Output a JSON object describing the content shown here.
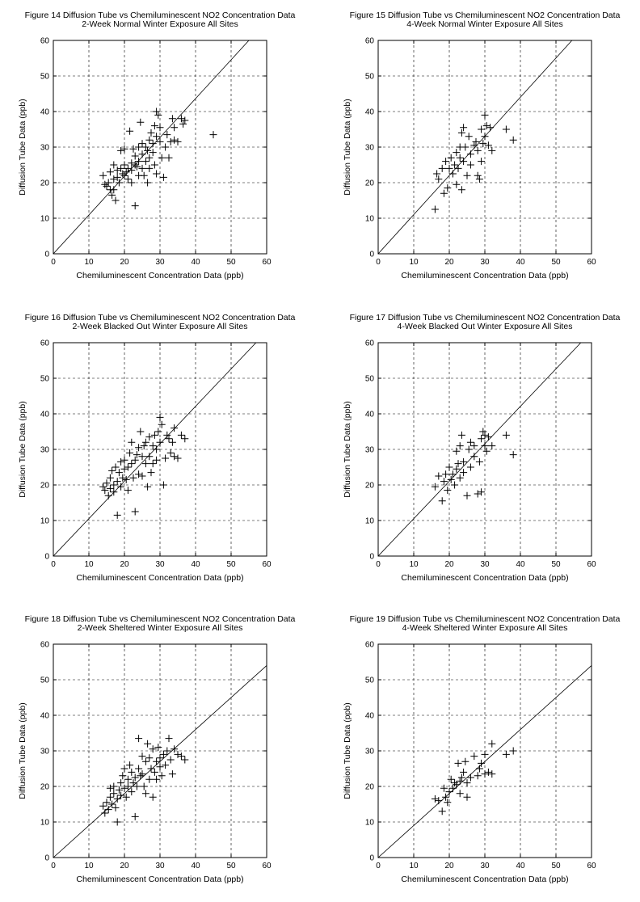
{
  "chart_data": [
    {
      "type": "scatter",
      "title": "Figure 14  Diffusion Tube vs Chemiluminescent NO2 Concentration Data",
      "subtitle": "2-Week Normal Winter Exposure All Sites",
      "xlabel": "Chemiluminescent Concentration Data (ppb)",
      "ylabel": "Diffusion Tube Data (ppb)",
      "xlim": [
        0,
        60
      ],
      "ylim": [
        0,
        60
      ],
      "xticks": [
        "0",
        "10",
        "20",
        "30",
        "40",
        "50",
        "60"
      ],
      "yticks": [
        "0",
        "10",
        "20",
        "30",
        "40",
        "50",
        "60"
      ],
      "grid": true,
      "line": {
        "x": [
          0,
          55
        ],
        "y": [
          0,
          60
        ]
      },
      "points": [
        [
          14,
          22
        ],
        [
          14.5,
          19.5
        ],
        [
          15,
          19
        ],
        [
          15.5,
          20
        ],
        [
          16,
          18
        ],
        [
          16,
          23
        ],
        [
          16.5,
          16.5
        ],
        [
          17,
          25
        ],
        [
          17,
          21
        ],
        [
          17,
          18
        ],
        [
          17.5,
          15
        ],
        [
          18,
          23.5
        ],
        [
          18,
          21.5
        ],
        [
          18.5,
          20
        ],
        [
          19,
          29
        ],
        [
          19,
          24
        ],
        [
          19.5,
          22.5
        ],
        [
          20,
          22
        ],
        [
          20,
          25
        ],
        [
          20,
          29.5
        ],
        [
          20.5,
          23
        ],
        [
          21,
          24
        ],
        [
          21,
          21
        ],
        [
          21.5,
          34.5
        ],
        [
          22,
          25.5
        ],
        [
          22,
          23.5
        ],
        [
          22,
          20
        ],
        [
          22.5,
          29.5
        ],
        [
          23,
          13.5
        ],
        [
          23,
          25
        ],
        [
          23,
          27.5
        ],
        [
          23.5,
          24.5
        ],
        [
          24,
          22
        ],
        [
          24,
          26
        ],
        [
          24,
          30
        ],
        [
          24.5,
          37
        ],
        [
          25,
          28
        ],
        [
          25,
          24
        ],
        [
          25,
          31
        ],
        [
          25.5,
          22
        ],
        [
          26,
          30
        ],
        [
          26,
          26
        ],
        [
          26.5,
          29
        ],
        [
          26.5,
          20
        ],
        [
          27,
          32
        ],
        [
          27,
          27
        ],
        [
          27,
          24
        ],
        [
          27.5,
          34
        ],
        [
          28,
          28.5
        ],
        [
          28,
          31
        ],
        [
          28.5,
          25
        ],
        [
          28.5,
          36
        ],
        [
          29,
          33
        ],
        [
          29,
          40
        ],
        [
          29,
          22.5
        ],
        [
          29.5,
          39
        ],
        [
          30,
          31.5
        ],
        [
          30,
          35.5
        ],
        [
          30.5,
          27
        ],
        [
          31,
          21.5
        ],
        [
          31.5,
          30
        ],
        [
          32,
          33.5
        ],
        [
          32.5,
          27
        ],
        [
          33,
          31.5
        ],
        [
          33.5,
          38
        ],
        [
          34,
          35.5
        ],
        [
          34,
          32
        ],
        [
          35,
          31.5
        ],
        [
          36,
          38
        ],
        [
          36.5,
          36.5
        ],
        [
          37,
          37.5
        ],
        [
          45,
          33.5
        ]
      ]
    },
    {
      "type": "scatter",
      "title": "Figure 15  Diffusion Tube vs Chemiluminescent NO2 Concentration Data",
      "subtitle": "4-Week Normal Winter Exposure All Sites",
      "xlabel": "Chemiluminescent Concentration Data (ppb)",
      "ylabel": "Diffusion Tube Data (ppb)",
      "xlim": [
        0,
        60
      ],
      "ylim": [
        0,
        60
      ],
      "xticks": [
        "0",
        "10",
        "20",
        "30",
        "40",
        "50",
        "60"
      ],
      "yticks": [
        "0",
        "10",
        "20",
        "30",
        "40",
        "50",
        "60"
      ],
      "grid": true,
      "line": {
        "x": [
          0,
          54.5
        ],
        "y": [
          0,
          60
        ]
      },
      "points": [
        [
          16,
          12.5
        ],
        [
          16.5,
          22.5
        ],
        [
          17,
          21
        ],
        [
          18,
          24
        ],
        [
          18.5,
          17
        ],
        [
          19,
          26
        ],
        [
          19.5,
          18.5
        ],
        [
          20,
          24
        ],
        [
          20.5,
          27
        ],
        [
          21,
          22.5
        ],
        [
          21.5,
          25
        ],
        [
          22,
          28.5
        ],
        [
          22,
          19.5
        ],
        [
          22.5,
          24
        ],
        [
          23,
          27
        ],
        [
          23,
          30
        ],
        [
          23.5,
          18
        ],
        [
          23.5,
          34
        ],
        [
          24,
          35.5
        ],
        [
          24,
          26
        ],
        [
          24.5,
          30
        ],
        [
          25,
          22
        ],
        [
          25.5,
          33
        ],
        [
          26,
          28
        ],
        [
          26,
          25
        ],
        [
          27,
          30.5
        ],
        [
          27.5,
          31.5
        ],
        [
          28,
          29
        ],
        [
          28,
          22
        ],
        [
          28.5,
          21
        ],
        [
          29,
          35
        ],
        [
          29,
          26
        ],
        [
          29.5,
          31
        ],
        [
          30,
          39
        ],
        [
          30,
          33
        ],
        [
          30.5,
          36
        ],
        [
          31,
          30.5
        ],
        [
          31.5,
          35.5
        ],
        [
          32,
          29
        ],
        [
          36,
          35
        ],
        [
          38,
          32
        ]
      ]
    },
    {
      "type": "scatter",
      "title": "Figure 16  Diffusion Tube vs Chemiluminescent NO2 Concentration Data",
      "subtitle": "2-Week Blacked Out Winter Exposure All Sites",
      "xlabel": "Chemiluminescent Concentration Data (ppb)",
      "ylabel": "Diffusion Tube Data (ppb)",
      "xlim": [
        0,
        60
      ],
      "ylim": [
        0,
        60
      ],
      "xticks": [
        "0",
        "10",
        "20",
        "30",
        "40",
        "50",
        "60"
      ],
      "yticks": [
        "0",
        "10",
        "20",
        "30",
        "40",
        "50",
        "60"
      ],
      "grid": true,
      "line": {
        "x": [
          0,
          57
        ],
        "y": [
          0,
          60
        ]
      },
      "points": [
        [
          14,
          19.5
        ],
        [
          14.5,
          18.5
        ],
        [
          15,
          20.5
        ],
        [
          15.5,
          17
        ],
        [
          16,
          22
        ],
        [
          16,
          19
        ],
        [
          16.5,
          24
        ],
        [
          17,
          20
        ],
        [
          17,
          18
        ],
        [
          17.5,
          25
        ],
        [
          18,
          11.5
        ],
        [
          18,
          21
        ],
        [
          18.5,
          23.5
        ],
        [
          19,
          26.5
        ],
        [
          19,
          19.5
        ],
        [
          19.5,
          22
        ],
        [
          20,
          24.5
        ],
        [
          20,
          27
        ],
        [
          20.5,
          21.5
        ],
        [
          21,
          25
        ],
        [
          21,
          18.5
        ],
        [
          21.5,
          29
        ],
        [
          22,
          26
        ],
        [
          22,
          32
        ],
        [
          22.5,
          22
        ],
        [
          23,
          12.5
        ],
        [
          23,
          27
        ],
        [
          23.5,
          28.5
        ],
        [
          24,
          23
        ],
        [
          24,
          30.5
        ],
        [
          24.5,
          35
        ],
        [
          25,
          28
        ],
        [
          25,
          22.5
        ],
        [
          25.5,
          31
        ],
        [
          26,
          26
        ],
        [
          26,
          32
        ],
        [
          26.5,
          19.5
        ],
        [
          27,
          28
        ],
        [
          27,
          33.5
        ],
        [
          27.5,
          23.5
        ],
        [
          28,
          31
        ],
        [
          28,
          26
        ],
        [
          28.5,
          34
        ],
        [
          29,
          30
        ],
        [
          29,
          27
        ],
        [
          29.5,
          35
        ],
        [
          30,
          39
        ],
        [
          30,
          32
        ],
        [
          30.5,
          37
        ],
        [
          31,
          20
        ],
        [
          31.5,
          27.5
        ],
        [
          32,
          34
        ],
        [
          32.5,
          33
        ],
        [
          33,
          29
        ],
        [
          33.5,
          32
        ],
        [
          34,
          36
        ],
        [
          34,
          28
        ],
        [
          35,
          27.5
        ],
        [
          36,
          34
        ],
        [
          37,
          33
        ]
      ]
    },
    {
      "type": "scatter",
      "title": "Figure 17  Diffusion Tube vs Chemiluminescent NO2 Concentration Data",
      "subtitle": "4-Week Blacked Out Winter Exposure All Sites",
      "xlabel": "Chemiluminescent Concentration Data (ppb)",
      "ylabel": "Diffusion Tube Data (ppb)",
      "xlim": [
        0,
        60
      ],
      "ylim": [
        0,
        60
      ],
      "xticks": [
        "0",
        "10",
        "20",
        "30",
        "40",
        "50",
        "60"
      ],
      "yticks": [
        "0",
        "10",
        "20",
        "30",
        "40",
        "50",
        "60"
      ],
      "grid": true,
      "line": {
        "x": [
          0,
          57
        ],
        "y": [
          0,
          60
        ]
      },
      "points": [
        [
          16,
          19.5
        ],
        [
          17,
          22.5
        ],
        [
          18,
          15.5
        ],
        [
          18.5,
          21
        ],
        [
          19,
          23
        ],
        [
          19.5,
          18.5
        ],
        [
          20,
          25
        ],
        [
          20.5,
          21.5
        ],
        [
          21,
          23
        ],
        [
          21.5,
          20
        ],
        [
          22,
          24.5
        ],
        [
          22,
          29.5
        ],
        [
          22.5,
          26
        ],
        [
          23,
          22
        ],
        [
          23,
          31
        ],
        [
          23.5,
          34
        ],
        [
          24,
          23.5
        ],
        [
          24,
          26.5
        ],
        [
          25,
          17
        ],
        [
          25.5,
          30
        ],
        [
          26,
          25
        ],
        [
          26,
          32
        ],
        [
          27,
          28
        ],
        [
          27,
          31
        ],
        [
          28,
          17.5
        ],
        [
          28.5,
          26.5
        ],
        [
          29,
          18
        ],
        [
          29,
          33
        ],
        [
          29.5,
          35
        ],
        [
          30,
          31
        ],
        [
          30,
          34
        ],
        [
          30.5,
          29.5
        ],
        [
          31,
          33.5
        ],
        [
          32,
          31
        ],
        [
          36,
          34
        ],
        [
          38,
          28.5
        ]
      ]
    },
    {
      "type": "scatter",
      "title": "Figure 18  Diffusion Tube vs Chemiluminescent NO2 Concentration Data",
      "subtitle": "2-Week Sheltered Winter Exposure All Sites",
      "xlabel": "Chemiluminescent Concentration Data (ppb)",
      "ylabel": "Diffusion Tube Data (ppb)",
      "xlim": [
        0,
        60
      ],
      "ylim": [
        0,
        60
      ],
      "xticks": [
        "0",
        "10",
        "20",
        "30",
        "40",
        "50",
        "60"
      ],
      "yticks": [
        "0",
        "10",
        "20",
        "30",
        "40",
        "50",
        "60"
      ],
      "grid": true,
      "line": {
        "x": [
          0,
          60
        ],
        "y": [
          0,
          54
        ]
      },
      "points": [
        [
          14,
          14.5
        ],
        [
          14.5,
          12.5
        ],
        [
          15,
          15.5
        ],
        [
          15.5,
          13.5
        ],
        [
          16,
          17
        ],
        [
          16,
          19.5
        ],
        [
          16.5,
          15
        ],
        [
          17,
          18
        ],
        [
          17,
          20
        ],
        [
          17.5,
          14
        ],
        [
          18,
          10
        ],
        [
          18,
          16.5
        ],
        [
          18.5,
          19
        ],
        [
          19,
          21
        ],
        [
          19,
          17.5
        ],
        [
          19.5,
          23
        ],
        [
          20,
          19.5
        ],
        [
          20,
          25
        ],
        [
          20.5,
          17
        ],
        [
          21,
          22
        ],
        [
          21,
          20
        ],
        [
          21.5,
          26
        ],
        [
          22,
          18.5
        ],
        [
          22,
          24
        ],
        [
          22.5,
          21
        ],
        [
          23,
          11.5
        ],
        [
          23,
          22.5
        ],
        [
          23.5,
          20
        ],
        [
          24,
          25
        ],
        [
          24,
          33.5
        ],
        [
          24.5,
          23
        ],
        [
          25,
          28.5
        ],
        [
          25,
          23.5
        ],
        [
          25.5,
          20
        ],
        [
          26,
          27
        ],
        [
          26,
          18
        ],
        [
          26.5,
          32
        ],
        [
          27,
          22
        ],
        [
          27,
          28
        ],
        [
          27.5,
          25
        ],
        [
          28,
          17
        ],
        [
          28,
          30.5
        ],
        [
          28.5,
          24
        ],
        [
          29,
          27
        ],
        [
          29,
          22
        ],
        [
          29.5,
          31
        ],
        [
          30,
          28
        ],
        [
          30,
          25.5
        ],
        [
          30.5,
          23
        ],
        [
          31,
          29
        ],
        [
          31.5,
          26
        ],
        [
          32,
          30
        ],
        [
          32.5,
          33.5
        ],
        [
          33,
          27.5
        ],
        [
          33.5,
          23.5
        ],
        [
          34,
          30.5
        ],
        [
          35,
          29
        ],
        [
          36,
          28.5
        ],
        [
          37,
          27.5
        ]
      ]
    },
    {
      "type": "scatter",
      "title": "Figure 19  Diffusion Tube vs Chemiluminescent NO2 Concentration Data",
      "subtitle": "4-Week Sheltered Winter Exposure All Sites",
      "xlabel": "Chemiluminescent Concentration Data (ppb)",
      "ylabel": "Diffusion Tube Data (ppb)",
      "xlim": [
        0,
        60
      ],
      "ylim": [
        0,
        60
      ],
      "xticks": [
        "0",
        "10",
        "20",
        "30",
        "40",
        "50",
        "60"
      ],
      "yticks": [
        "0",
        "10",
        "20",
        "30",
        "40",
        "50",
        "60"
      ],
      "grid": true,
      "line": {
        "x": [
          0,
          60
        ],
        "y": [
          0,
          54
        ]
      },
      "points": [
        [
          16,
          16.5
        ],
        [
          17,
          16
        ],
        [
          18,
          13
        ],
        [
          18.5,
          19.5
        ],
        [
          19,
          17
        ],
        [
          19.5,
          15.5
        ],
        [
          20,
          18.5
        ],
        [
          20.5,
          22
        ],
        [
          21,
          19.5
        ],
        [
          21.5,
          21
        ],
        [
          22,
          20.5
        ],
        [
          22.5,
          26.5
        ],
        [
          23,
          21.5
        ],
        [
          23,
          18
        ],
        [
          23.5,
          22.5
        ],
        [
          24,
          24
        ],
        [
          24.5,
          27
        ],
        [
          25,
          17
        ],
        [
          25,
          21
        ],
        [
          26,
          22.5
        ],
        [
          27,
          28.5
        ],
        [
          28,
          23
        ],
        [
          28.5,
          25
        ],
        [
          29,
          26.5
        ],
        [
          30,
          23.5
        ],
        [
          30,
          29
        ],
        [
          31,
          24
        ],
        [
          32,
          32
        ],
        [
          32,
          23.5
        ],
        [
          36,
          29
        ],
        [
          38,
          30
        ]
      ]
    }
  ]
}
